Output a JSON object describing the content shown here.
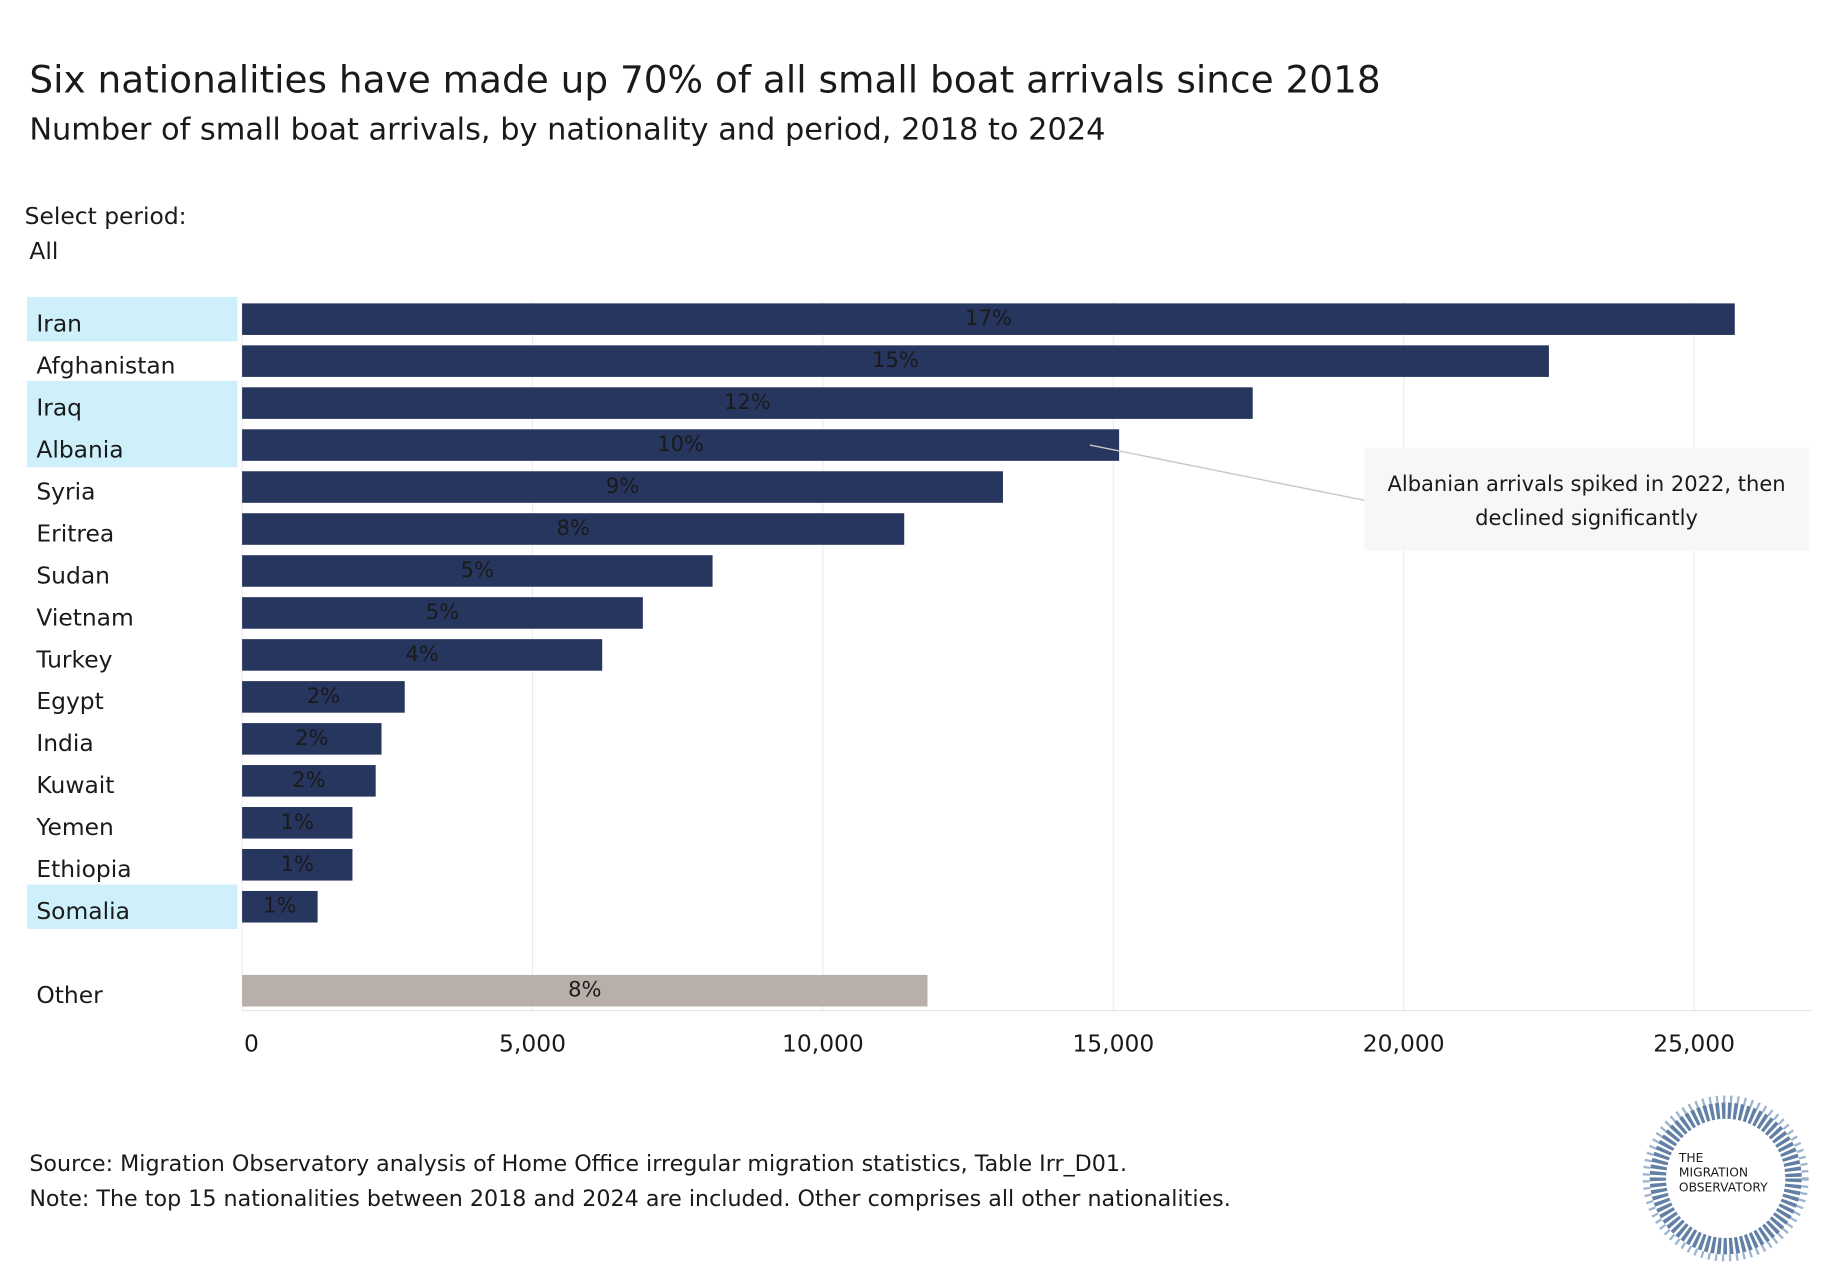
{
  "chart_data": {
    "type": "bar",
    "title": "Six nationalities have made up 70% of all small boat arrivals since 2018",
    "subtitle": "Number of small boat arrivals, by nationality and period, 2018 to 2024",
    "filter_label": "Select period:",
    "filter_value": "All",
    "categories": [
      "Iran",
      "Afghanistan",
      "Iraq",
      "Albania",
      "Syria",
      "Eritrea",
      "Sudan",
      "Vietnam",
      "Turkey",
      "Egypt",
      "India",
      "Kuwait",
      "Yemen",
      "Ethiopia",
      "Somalia",
      "Other"
    ],
    "values": [
      25700,
      22500,
      17400,
      15100,
      13100,
      11400,
      8100,
      6900,
      6200,
      2800,
      2400,
      2300,
      1900,
      1900,
      1300,
      11800
    ],
    "share_labels": [
      "17%",
      "15%",
      "12%",
      "10%",
      "9%",
      "8%",
      "5%",
      "5%",
      "4%",
      "2%",
      "2%",
      "2%",
      "1%",
      "1%",
      "1%",
      "8%"
    ],
    "colors": [
      "#27365f",
      "#27365f",
      "#27365f",
      "#27365f",
      "#27365f",
      "#27365f",
      "#27365f",
      "#27365f",
      "#27365f",
      "#27365f",
      "#27365f",
      "#27365f",
      "#27365f",
      "#27365f",
      "#27365f",
      "#b8aeaa"
    ],
    "highlighted": [
      true,
      false,
      true,
      true,
      false,
      false,
      false,
      false,
      false,
      false,
      false,
      false,
      false,
      false,
      true,
      false
    ],
    "highlight_color": "#cdf0fa",
    "xlim": [
      0,
      27000
    ],
    "xticks": [
      0,
      {
        "value": 5000,
        "label": "5,000"
      },
      {
        "value": 10000,
        "label": "10,000"
      },
      {
        "value": 15000,
        "label": "15,000"
      },
      {
        "value": 20000,
        "label": "20,000"
      },
      {
        "value": 25000,
        "label": "25,000"
      }
    ],
    "grid": true,
    "annotation": {
      "lines": [
        "Albanian arrivals spiked in 2022, then",
        "declined significantly"
      ],
      "category": "Albania"
    },
    "source": "Source: Migration Observatory analysis of Home Office irregular migration statistics, Table Irr_D01.",
    "note": "Note: The top 15 nationalities between 2018 and 2024 are included. Other comprises all other nationalities.",
    "logo": [
      "THE",
      "MIGRATION",
      "OBSERVATORY"
    ]
  }
}
